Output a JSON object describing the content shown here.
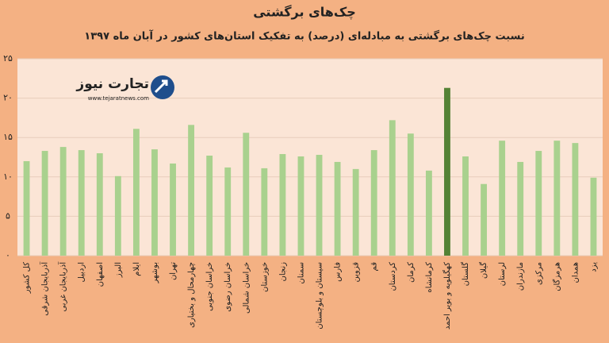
{
  "chart_data": {
    "type": "bar",
    "title": "چک‌های برگشتی",
    "subtitle": "نسبت چک‌های برگشتی به مبادله‌ای (درصد) به تفکیک استان‌های کشور در آبان ماه ۱۳۹۷",
    "logo": {
      "name": "تجارت نیوز",
      "url": "www.tejaratnews.com"
    },
    "categories": [
      "کل کشور",
      "آذربایجان شرقی",
      "آذربایجان غربی",
      "اردبیل",
      "اصفهان",
      "البرز",
      "ایلام",
      "بوشهر",
      "تهران",
      "چهارمحال و بختیاری",
      "خراسان جنوبی",
      "خراسان رضوی",
      "خراسان شمالی",
      "خوزستان",
      "زنجان",
      "سمنان",
      "سیستان و بلوچستان",
      "فارس",
      "قزوین",
      "قم",
      "کردستان",
      "کرمان",
      "کرمانشاه",
      "کهگیلویه و بویر احمد",
      "گلستان",
      "گیلان",
      "لرستان",
      "مازندران",
      "مرکزی",
      "هرمزگان",
      "همدان",
      "یزد"
    ],
    "values": [
      12.0,
      13.3,
      13.8,
      13.4,
      13.0,
      10.1,
      16.1,
      13.5,
      11.7,
      16.6,
      12.7,
      11.2,
      15.6,
      11.1,
      12.9,
      12.6,
      12.8,
      11.9,
      11.0,
      13.4,
      17.2,
      15.5,
      10.8,
      21.3,
      12.6,
      9.1,
      14.6,
      11.9,
      13.3,
      14.6,
      14.3,
      9.9
    ],
    "colors": [
      "#a9d18e",
      "#a9d18e",
      "#a9d18e",
      "#a9d18e",
      "#a9d18e",
      "#a9d18e",
      "#a9d18e",
      "#a9d18e",
      "#a9d18e",
      "#a9d18e",
      "#a9d18e",
      "#a9d18e",
      "#a9d18e",
      "#a9d18e",
      "#a9d18e",
      "#a9d18e",
      "#a9d18e",
      "#a9d18e",
      "#a9d18e",
      "#a9d18e",
      "#a9d18e",
      "#a9d18e",
      "#a9d18e",
      "#548235",
      "#a9d18e",
      "#a9d18e",
      "#a9d18e",
      "#a9d18e",
      "#a9d18e",
      "#a9d18e",
      "#a9d18e",
      "#a9d18e"
    ],
    "ylim": [
      0,
      25
    ],
    "yticks": [
      {
        "value": 0,
        "label": "۰"
      },
      {
        "value": 5,
        "label": "۵"
      },
      {
        "value": 10,
        "label": "۱۰"
      },
      {
        "value": 15,
        "label": "۱۵"
      },
      {
        "value": 20,
        "label": "۲۰"
      },
      {
        "value": 25,
        "label": "۲۵"
      }
    ],
    "grid": true
  }
}
